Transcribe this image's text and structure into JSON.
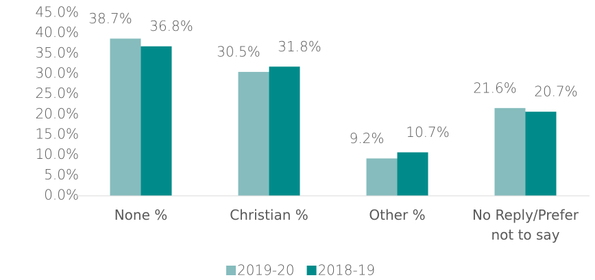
{
  "chart_data": {
    "type": "bar",
    "categories": [
      "None %",
      "Christian %",
      "Other %",
      "No Reply/Prefer not to say"
    ],
    "series": [
      {
        "name": "2019-20",
        "color": "#86bcbd",
        "values": [
          38.7,
          30.5,
          9.2,
          21.6
        ],
        "value_labels": [
          "38.7%",
          "30.5%",
          "9.2%",
          "21.6%"
        ]
      },
      {
        "name": "2018-19",
        "color": "#008b8a",
        "values": [
          36.8,
          31.8,
          10.7,
          20.7
        ],
        "value_labels": [
          "36.8%",
          "31.8%",
          "10.7%",
          "20.7%"
        ]
      }
    ],
    "ylim": [
      0,
      45
    ],
    "yticks": [
      {
        "value": 0,
        "label": "0.0%"
      },
      {
        "value": 5,
        "label": "5.0%"
      },
      {
        "value": 10,
        "label": "10.0%"
      },
      {
        "value": 15,
        "label": "15.0%"
      },
      {
        "value": 20,
        "label": "20.0%"
      },
      {
        "value": 25,
        "label": "25.0%"
      },
      {
        "value": 30,
        "label": "30.0%"
      },
      {
        "value": 35,
        "label": "35.0%"
      },
      {
        "value": 40,
        "label": "40.0%"
      },
      {
        "value": 45,
        "label": "45.0%"
      }
    ],
    "grid": false,
    "legend": "bottom"
  }
}
